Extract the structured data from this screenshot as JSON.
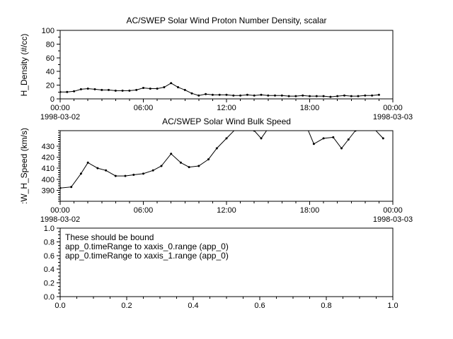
{
  "colors": {
    "fg": "#000000",
    "bg": "#ffffff"
  },
  "chart_data": [
    {
      "type": "line",
      "title": "AC/SWEP  Solar Wind Proton Number Density, scalar",
      "ylabel": "H_Density (#/cc)",
      "legend": null,
      "grid": false,
      "xaxis": {
        "range": [
          0,
          24
        ],
        "tick_positions": [
          0,
          6,
          12,
          18,
          24
        ],
        "tick_labels": [
          "00:00",
          "06:00",
          "12:00",
          "18:00",
          "00:00"
        ],
        "minor_step": 1,
        "date_left": "1998-03-02",
        "date_right": "1998-03-03"
      },
      "yaxis": {
        "range": [
          0,
          100
        ],
        "tick_positions": [
          0,
          20,
          40,
          60,
          80,
          100
        ],
        "tick_labels": [
          "0",
          "20",
          "40",
          "60",
          "80",
          "100"
        ],
        "minor_step": 10
      },
      "x_hours": [
        0,
        0.5,
        1,
        1.5,
        2,
        2.5,
        3,
        3.5,
        4,
        4.5,
        5,
        5.5,
        6,
        6.5,
        7,
        7.5,
        8,
        8.5,
        9,
        9.5,
        10,
        10.5,
        11,
        11.5,
        12,
        12.5,
        13,
        13.5,
        14,
        14.5,
        15,
        15.5,
        16,
        16.5,
        17,
        17.5,
        18,
        18.5,
        19,
        19.5,
        20,
        20.5,
        21,
        21.5,
        22,
        22.5,
        23
      ],
      "y_values": [
        10,
        10,
        11,
        14,
        15,
        14,
        13,
        13,
        12,
        12,
        12,
        13,
        16,
        15,
        15,
        17,
        23,
        17,
        13,
        8,
        5,
        7,
        6,
        6,
        6,
        5,
        5,
        6,
        5,
        6,
        5,
        5,
        5,
        4,
        4,
        5,
        4,
        4,
        4,
        3,
        4,
        5,
        4,
        4,
        5,
        5,
        6
      ]
    },
    {
      "type": "line",
      "title": "AC/SWEP  Solar Wind Bulk Speed",
      "ylabel": ":W_H_Speed (km/s)",
      "legend": null,
      "grid": false,
      "xaxis": {
        "range": [
          0,
          24
        ],
        "tick_positions": [
          0,
          6,
          12,
          18,
          24
        ],
        "tick_labels": [
          "00:00",
          "06:00",
          "12:00",
          "18:00",
          "00:00"
        ],
        "minor_step": 1,
        "date_left": "1998-03-02",
        "date_right": "1998-03-03"
      },
      "yaxis": {
        "range": [
          380,
          444
        ],
        "tick_positions": [
          390,
          400,
          410,
          420,
          430
        ],
        "tick_labels": [
          "390",
          "400",
          "410",
          "420",
          "430"
        ],
        "minor_step": 2
      },
      "x_hours": [
        0,
        0.8,
        1.5,
        2,
        2.7,
        3.3,
        4,
        4.7,
        5.3,
        6,
        6.7,
        7.3,
        8,
        8.7,
        9.3,
        10,
        10.7,
        11.3,
        12,
        12.7,
        13.3,
        14,
        14.5,
        15,
        15.7,
        16.5,
        17.2,
        17.8,
        18.3,
        19,
        19.7,
        20.3,
        20.8,
        21.3,
        22,
        22.7,
        23.3
      ],
      "y_values": [
        392,
        393,
        405,
        415,
        410,
        408,
        403,
        403,
        404,
        405,
        408,
        412,
        423,
        415,
        411,
        412,
        418,
        428,
        437,
        446,
        452,
        444,
        437,
        446,
        455,
        458,
        452,
        447,
        432,
        437,
        438,
        428,
        436,
        444,
        452,
        445,
        437
      ]
    },
    {
      "type": "empty",
      "annotation_lines": [
        "These should be bound",
        "app_0.timeRange to xaxis_0.range  (app_0)",
        "app_0.timeRange to xaxis_1.range  (app_0)"
      ],
      "xaxis": {
        "range": [
          0,
          1
        ],
        "tick_positions": [
          0,
          0.2,
          0.4,
          0.6,
          0.8,
          1
        ],
        "tick_labels": [
          "0.0",
          "0.2",
          "0.4",
          "0.6",
          "0.8",
          "1.0"
        ],
        "minor_step": 0.05
      },
      "yaxis": {
        "range": [
          0,
          1
        ],
        "tick_positions": [
          0,
          0.2,
          0.4,
          0.6,
          0.8,
          1
        ],
        "tick_labels": [
          "0.0",
          "0.2",
          "0.4",
          "0.6",
          "0.8",
          "1.0"
        ],
        "minor_step": 0.05
      }
    }
  ]
}
